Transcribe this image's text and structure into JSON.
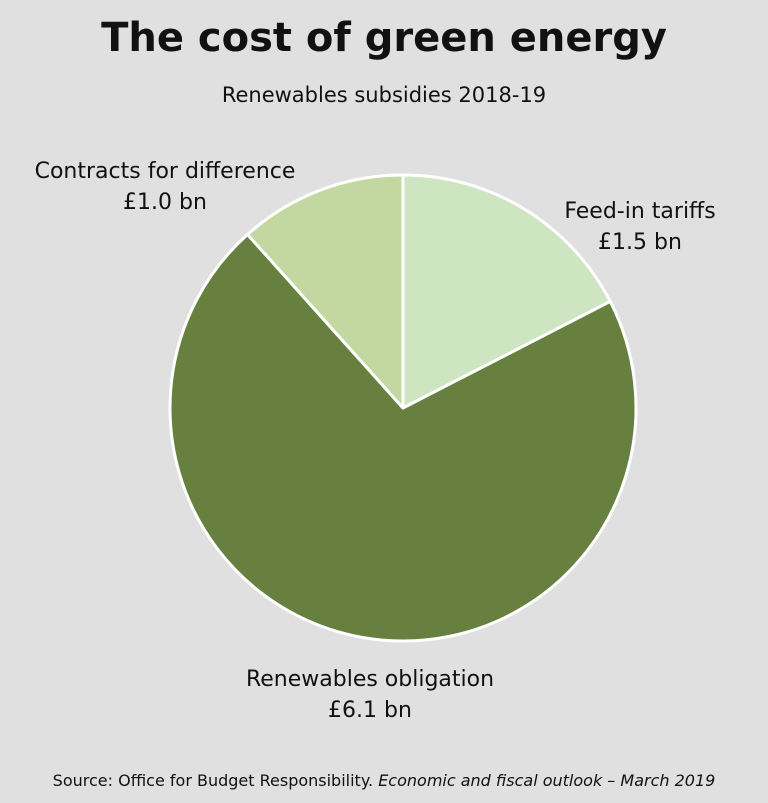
{
  "chart_data": {
    "type": "pie",
    "title": "The cost of green energy",
    "subtitle": "Renewables subsidies 2018-19",
    "categories": [
      "Feed-in tariffs",
      "Renewables obligation",
      "Contracts for difference"
    ],
    "values": [
      1.5,
      6.1,
      1.0
    ],
    "value_labels": [
      "£1.5 bn",
      "£6.1 bn",
      "£1.0 bn"
    ],
    "colors": [
      "#cde5c0",
      "#67803f",
      "#c3d8a0"
    ],
    "source": {
      "text": "Source: Office for Budget Responsibility.",
      "publication": "Economic and fiscal outlook – March 2019"
    }
  }
}
